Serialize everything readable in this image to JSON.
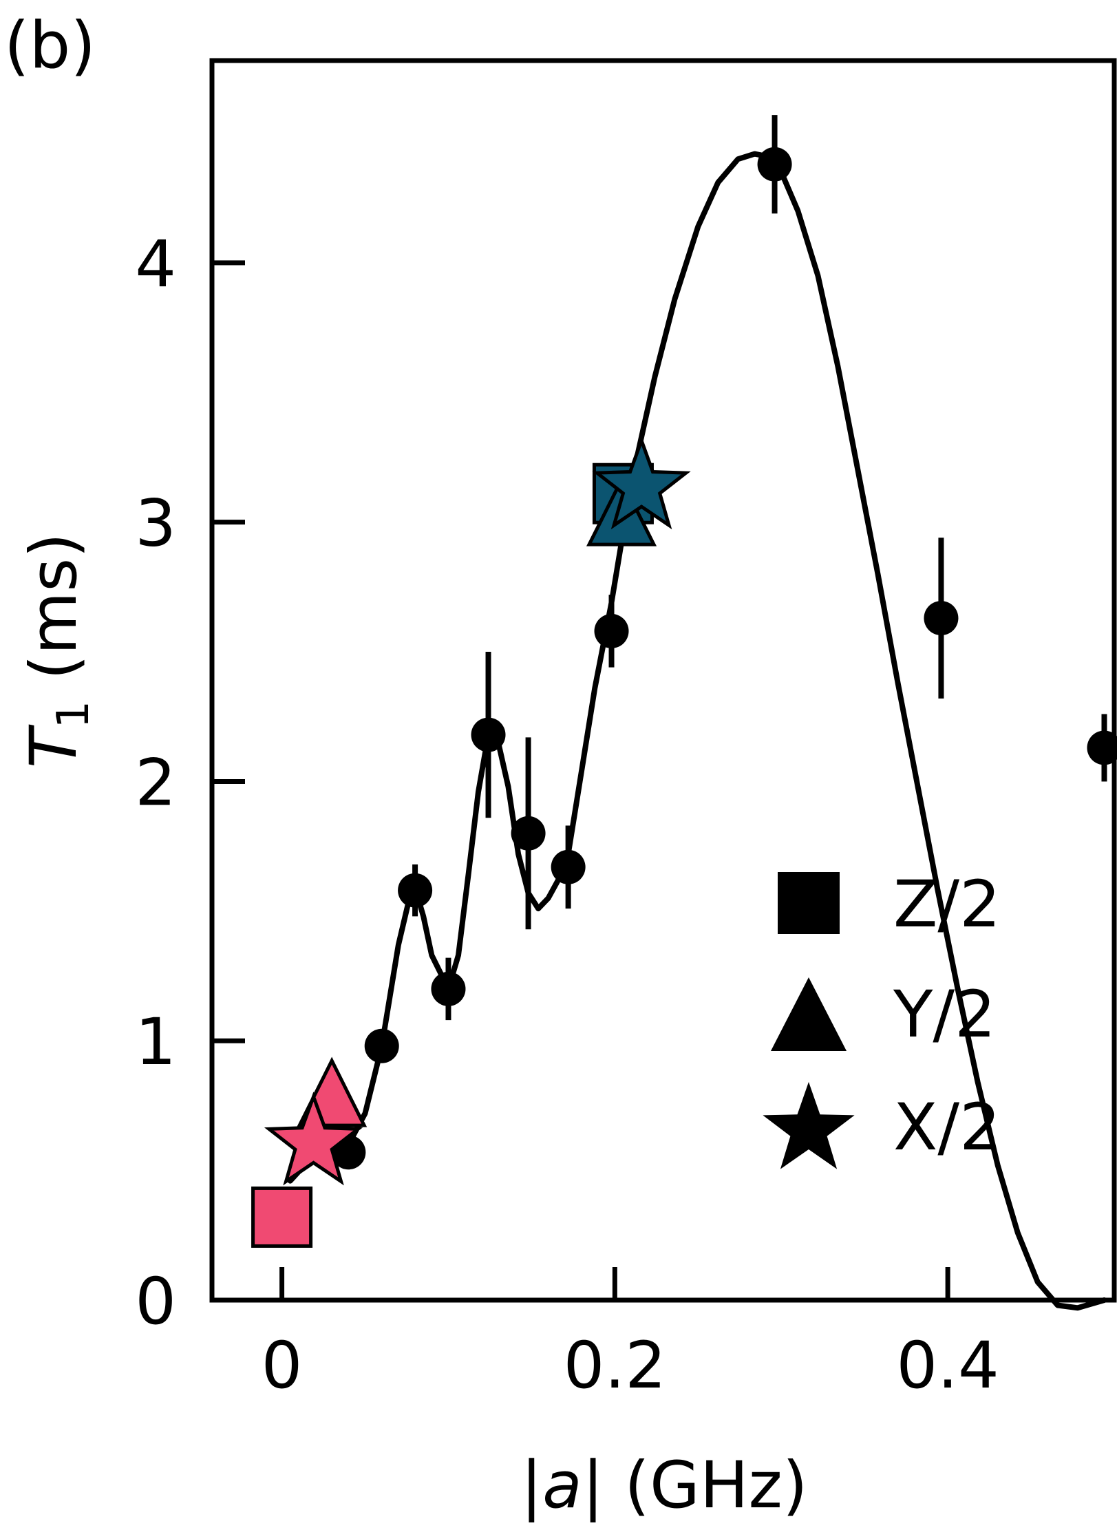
{
  "panel_label": "(b)",
  "chart_data": {
    "type": "scatter",
    "xlabel_parts": [
      "|",
      "a",
      "| (GHz)"
    ],
    "ylabel_parts": [
      "T",
      "1",
      " (ms)"
    ],
    "xlim": [
      -0.042,
      0.5
    ],
    "ylim": [
      0,
      4.78
    ],
    "xticks": [
      0,
      0.2,
      0.4
    ],
    "xtick_labels": [
      "0",
      "0.2",
      "0.4"
    ],
    "yticks": [
      0,
      1,
      2,
      3,
      4
    ],
    "ytick_labels": [
      "0",
      "1",
      "2",
      "3",
      "4"
    ],
    "grid": false,
    "legend_position": "lower-right",
    "legend": [
      {
        "label": "Z/2",
        "marker": "square"
      },
      {
        "label": "Y/2",
        "marker": "triangle"
      },
      {
        "label": "X/2",
        "marker": "star"
      }
    ],
    "colors": {
      "low": "#f04a72",
      "high": "#0b5470",
      "data": "#000000"
    },
    "series": [
      {
        "marker": "circle",
        "points": [
          {
            "x": 0.04,
            "y": 0.57,
            "err": 0.03
          },
          {
            "x": 0.06,
            "y": 0.98,
            "err": 0.02
          },
          {
            "x": 0.08,
            "y": 1.58,
            "err": 0.1
          },
          {
            "x": 0.1,
            "y": 1.2,
            "err": 0.12
          },
          {
            "x": 0.124,
            "y": 2.18,
            "err": 0.32
          },
          {
            "x": 0.148,
            "y": 1.8,
            "err": 0.37
          },
          {
            "x": 0.172,
            "y": 1.67,
            "err": 0.16
          },
          {
            "x": 0.198,
            "y": 2.58,
            "err": 0.14
          },
          {
            "x": 0.296,
            "y": 4.38,
            "err": 0.19
          },
          {
            "x": 0.396,
            "y": 2.63,
            "err": 0.31
          },
          {
            "x": 0.494,
            "y": 2.13,
            "err": 0.13
          }
        ]
      },
      {
        "marker": "square",
        "points": [
          {
            "x": 0.0,
            "y": 0.32,
            "color_key": "low"
          },
          {
            "x": 0.205,
            "y": 3.11,
            "color_key": "high"
          }
        ]
      },
      {
        "marker": "triangle",
        "points": [
          {
            "x": 0.03,
            "y": 0.78,
            "color_key": "low"
          },
          {
            "x": 0.204,
            "y": 3.02,
            "color_key": "high"
          }
        ]
      },
      {
        "marker": "star",
        "points": [
          {
            "x": 0.019,
            "y": 0.62,
            "color_key": "low"
          },
          {
            "x": 0.216,
            "y": 3.15,
            "color_key": "high"
          }
        ]
      }
    ],
    "fit_curve": {
      "x": [
        0.005,
        0.015,
        0.025,
        0.035,
        0.04,
        0.05,
        0.06,
        0.07,
        0.077,
        0.08,
        0.085,
        0.09,
        0.1,
        0.106,
        0.112,
        0.118,
        0.124,
        0.13,
        0.136,
        0.142,
        0.148,
        0.154,
        0.16,
        0.166,
        0.172,
        0.18,
        0.188,
        0.198,
        0.206,
        0.214,
        0.224,
        0.236,
        0.25,
        0.262,
        0.274,
        0.284,
        0.292,
        0.3,
        0.31,
        0.322,
        0.334,
        0.346,
        0.358,
        0.37,
        0.382,
        0.394,
        0.406,
        0.418,
        0.43,
        0.442,
        0.454,
        0.466,
        0.478,
        0.494
      ],
      "y": [
        0.46,
        0.53,
        0.56,
        0.57,
        0.6,
        0.72,
        0.98,
        1.37,
        1.56,
        1.59,
        1.48,
        1.33,
        1.2,
        1.33,
        1.64,
        1.96,
        2.18,
        2.15,
        1.98,
        1.72,
        1.57,
        1.51,
        1.55,
        1.62,
        1.72,
        2.04,
        2.36,
        2.69,
        3.0,
        3.27,
        3.56,
        3.86,
        4.14,
        4.31,
        4.4,
        4.42,
        4.41,
        4.35,
        4.2,
        3.95,
        3.6,
        3.2,
        2.8,
        2.38,
        1.98,
        1.58,
        1.2,
        0.84,
        0.52,
        0.26,
        0.07,
        -0.02,
        -0.03,
        0.0
      ]
    }
  }
}
